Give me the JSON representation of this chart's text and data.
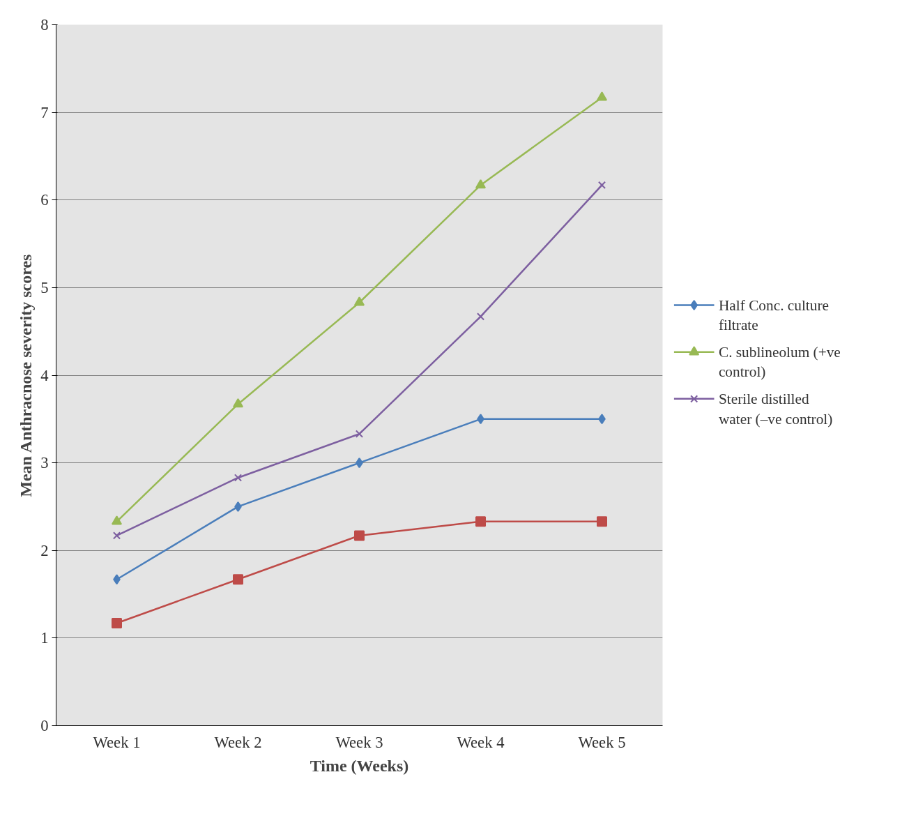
{
  "chart_data": {
    "type": "line",
    "xlabel": "Time (Weeks)",
    "ylabel": "Mean Anthracnose severity scores",
    "categories": [
      "Week 1",
      "Week 2",
      "Week 3",
      "Week 4",
      "Week 5"
    ],
    "series": [
      {
        "name": "Half Conc. culture filtrate",
        "color": "#4a7ebb",
        "marker": "diamond",
        "values": [
          1.67,
          2.5,
          3.0,
          3.5,
          3.5
        ]
      },
      {
        "color": "#be4b48",
        "marker": "square",
        "values": [
          1.17,
          1.67,
          2.17,
          2.33,
          2.33
        ]
      },
      {
        "name": "C. sublineolum (+ve control)",
        "color": "#98b954",
        "marker": "triangle",
        "values": [
          2.33,
          3.67,
          4.83,
          6.17,
          7.17
        ]
      },
      {
        "name": "Sterile distilled water (–ve control)",
        "color": "#7d5fa0",
        "marker": "cross",
        "values": [
          2.17,
          2.83,
          3.33,
          4.67,
          6.17
        ]
      }
    ],
    "ylim": [
      0,
      8
    ],
    "yticks": [
      0,
      1,
      2,
      3,
      4,
      5,
      6,
      7,
      8
    ],
    "grid": "y",
    "legend": "right"
  }
}
